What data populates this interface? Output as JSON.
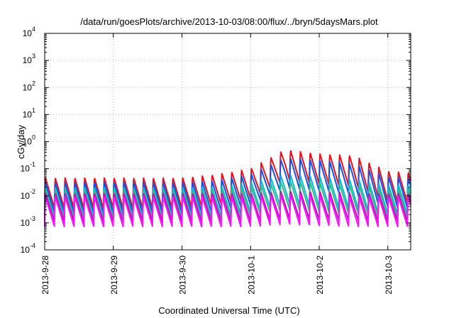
{
  "chart_data": {
    "type": "line",
    "title": "/data/run/goesPlots/archive/2013-10-03/08:00/flux/../bryn/5daysMars.plot",
    "xlabel": "Coordinated Universal Time (UTC)",
    "ylabel": "cGy/day",
    "y_scale": "log",
    "ylim": [
      0.0001,
      10000
    ],
    "y_ticks": [
      {
        "base": "10",
        "exp": "-4",
        "value": 0.0001
      },
      {
        "base": "10",
        "exp": "-3",
        "value": 0.001
      },
      {
        "base": "10",
        "exp": "-2",
        "value": 0.01
      },
      {
        "base": "10",
        "exp": "-1",
        "value": 0.1
      },
      {
        "base": "10",
        "exp": "0",
        "value": 1
      },
      {
        "base": "10",
        "exp": "1",
        "value": 10
      },
      {
        "base": "10",
        "exp": "2",
        "value": 100
      },
      {
        "base": "10",
        "exp": "3",
        "value": 1000
      },
      {
        "base": "10",
        "exp": "4",
        "value": 10000
      }
    ],
    "xlim": [
      "2013-09-28",
      "2013-10-03 08:00"
    ],
    "x_ticks": [
      "2013-9-28",
      "2013-9-29",
      "2013-9-30",
      "2013-10-1",
      "2013-10-2",
      "2013-10-3"
    ],
    "grid": true,
    "legend": "none",
    "series_colors": [
      "#e8101a",
      "#1750e6",
      "#10b8d6",
      "#2cbf8a",
      "#b01ab0",
      "#ff10ff"
    ],
    "series": [
      {
        "color": "#e8101a",
        "values": [
          [
            0.0,
            0.045
          ],
          [
            0.5,
            0.045
          ],
          [
            1.0,
            0.045
          ],
          [
            1.5,
            0.045
          ],
          [
            2.0,
            0.045
          ],
          [
            2.5,
            0.06
          ],
          [
            3.0,
            0.1
          ],
          [
            3.5,
            0.5
          ],
          [
            4.0,
            0.35
          ],
          [
            4.5,
            0.3
          ],
          [
            5.0,
            0.08
          ],
          [
            5.33,
            0.07
          ]
        ]
      },
      {
        "color": "#1750e6",
        "values": [
          [
            0.0,
            0.03
          ],
          [
            0.5,
            0.03
          ],
          [
            1.0,
            0.03
          ],
          [
            1.5,
            0.03
          ],
          [
            2.0,
            0.03
          ],
          [
            2.5,
            0.035
          ],
          [
            3.0,
            0.06
          ],
          [
            3.5,
            0.25
          ],
          [
            4.0,
            0.2
          ],
          [
            4.5,
            0.15
          ],
          [
            5.0,
            0.05
          ],
          [
            5.33,
            0.045
          ]
        ]
      },
      {
        "color": "#10b8d6",
        "values": [
          [
            0.0,
            0.02
          ],
          [
            0.5,
            0.02
          ],
          [
            1.0,
            0.02
          ],
          [
            1.5,
            0.02
          ],
          [
            2.0,
            0.02
          ],
          [
            2.5,
            0.02
          ],
          [
            3.0,
            0.03
          ],
          [
            3.5,
            0.06
          ],
          [
            4.0,
            0.05
          ],
          [
            4.5,
            0.04
          ],
          [
            5.0,
            0.025
          ],
          [
            5.33,
            0.025
          ]
        ]
      },
      {
        "color": "#2cbf8a",
        "values": [
          [
            0.0,
            0.015
          ],
          [
            0.5,
            0.015
          ],
          [
            1.0,
            0.015
          ],
          [
            1.5,
            0.015
          ],
          [
            2.0,
            0.015
          ],
          [
            2.5,
            0.015
          ],
          [
            3.0,
            0.02
          ],
          [
            3.5,
            0.035
          ],
          [
            4.0,
            0.03
          ],
          [
            4.5,
            0.025
          ],
          [
            5.0,
            0.018
          ],
          [
            5.33,
            0.017
          ]
        ]
      },
      {
        "color": "#b01ab0",
        "values": [
          [
            0.0,
            0.012
          ],
          [
            0.5,
            0.012
          ],
          [
            1.0,
            0.012
          ],
          [
            1.5,
            0.012
          ],
          [
            2.0,
            0.012
          ],
          [
            2.5,
            0.012
          ],
          [
            3.0,
            0.012
          ],
          [
            3.5,
            0.015
          ],
          [
            4.0,
            0.014
          ],
          [
            4.5,
            0.013
          ],
          [
            5.0,
            0.012
          ],
          [
            5.33,
            0.012
          ]
        ]
      },
      {
        "color": "#ff10ff",
        "values": [
          [
            0.0,
            0.009
          ],
          [
            0.5,
            0.009
          ],
          [
            1.0,
            0.009
          ],
          [
            1.5,
            0.009
          ],
          [
            2.0,
            0.009
          ],
          [
            2.5,
            0.009
          ],
          [
            3.0,
            0.009
          ],
          [
            3.5,
            0.011
          ],
          [
            4.0,
            0.01
          ],
          [
            4.5,
            0.009
          ],
          [
            5.0,
            0.009
          ],
          [
            5.33,
            0.009
          ]
        ]
      }
    ]
  }
}
